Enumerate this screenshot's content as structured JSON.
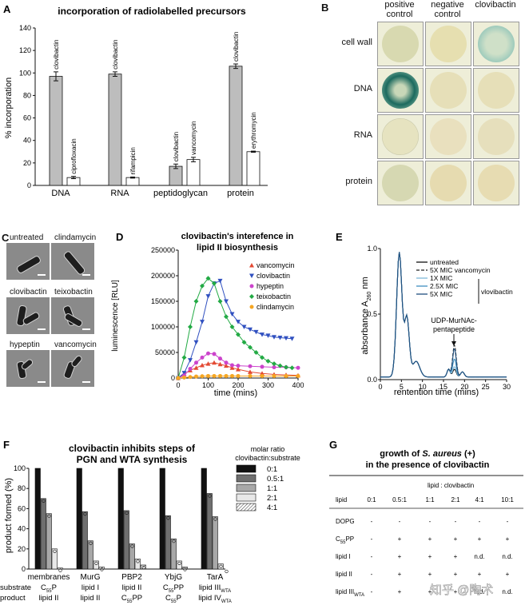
{
  "panels": {
    "A": "A",
    "B": "B",
    "C": "C",
    "D": "D",
    "E": "E",
    "F": "F",
    "G": "G"
  },
  "watermark": "知乎 @陶术",
  "panel_A": {
    "chart_data": {
      "type": "bar",
      "title": "incorporation of radiolabelled precursors",
      "ylabel": "% incorporation",
      "ylim": [
        0,
        140
      ],
      "yticks": [
        0,
        20,
        40,
        60,
        80,
        100,
        120,
        140
      ],
      "groups": [
        "DNA",
        "RNA",
        "peptidoglycan",
        "protein"
      ],
      "bars": [
        {
          "group": "DNA",
          "label": "clovibactin",
          "value": 97,
          "err": 4,
          "fill": "#bdbdbd"
        },
        {
          "group": "DNA",
          "label": "ciprofloxacin",
          "value": 7,
          "err": 1,
          "fill": "#ffffff"
        },
        {
          "group": "RNA",
          "label": "clovibactin",
          "value": 99,
          "err": 2,
          "fill": "#bdbdbd"
        },
        {
          "group": "RNA",
          "label": "rifampicin",
          "value": 7,
          "err": 0.5,
          "fill": "#ffffff"
        },
        {
          "group": "peptidoglycan",
          "label": "clovibactin",
          "value": 17,
          "err": 2,
          "fill": "#bdbdbd"
        },
        {
          "group": "peptidoglycan",
          "label": "vancomycin",
          "value": 23,
          "err": 2,
          "fill": "#ffffff"
        },
        {
          "group": "protein",
          "label": "clovibactin",
          "value": 106,
          "err": 2,
          "fill": "#bdbdbd"
        },
        {
          "group": "protein",
          "label": "erythromycin",
          "value": 30,
          "err": 0.5,
          "fill": "#ffffff"
        }
      ]
    }
  },
  "panel_B": {
    "columns": [
      "positive\ncontrol",
      "negative\ncontrol",
      "clovibactin"
    ],
    "rows": [
      "cell wall",
      "DNA",
      "RNA",
      "protein"
    ]
  },
  "panel_C": {
    "labels": [
      "untreated",
      "clindamycin",
      "clovibactin",
      "teixobactin",
      "hypeptin",
      "vancomycin"
    ]
  },
  "panel_D": {
    "chart_data": {
      "type": "line",
      "title": "clovibactin's interefence in lipid II biosynthesis",
      "xlabel": "time (mins)",
      "ylabel": "luminescence [RLU]",
      "xlim": [
        0,
        400
      ],
      "ylim": [
        0,
        250000
      ],
      "xticks": [
        0,
        100,
        200,
        300,
        400
      ],
      "yticks": [
        0,
        50000,
        100000,
        150000,
        200000,
        250000
      ],
      "series": [
        {
          "name": "vancomycin",
          "color": "#e34a33",
          "marker": "triangle-up",
          "x": [
            0,
            20,
            40,
            60,
            80,
            100,
            120,
            140,
            160,
            180,
            200,
            240,
            280,
            320,
            360,
            400
          ],
          "y": [
            0,
            8000,
            15000,
            20000,
            25000,
            28000,
            30000,
            27000,
            24000,
            20000,
            17000,
            12000,
            9000,
            7000,
            6000,
            5000
          ]
        },
        {
          "name": "clovibactin",
          "color": "#3050c0",
          "marker": "triangle-down",
          "x": [
            0,
            20,
            40,
            60,
            80,
            100,
            120,
            140,
            160,
            180,
            200,
            220,
            240,
            260,
            280,
            300,
            320,
            340,
            360,
            380
          ],
          "y": [
            0,
            10000,
            35000,
            70000,
            110000,
            160000,
            185000,
            190000,
            150000,
            125000,
            110000,
            100000,
            95000,
            90000,
            85000,
            83000,
            80000,
            79000,
            78000,
            77000
          ]
        },
        {
          "name": "hypeptin",
          "color": "#cc44cc",
          "marker": "circle",
          "x": [
            0,
            20,
            40,
            60,
            80,
            100,
            120,
            140,
            160,
            180,
            200,
            240,
            280,
            320,
            360,
            400
          ],
          "y": [
            0,
            5000,
            18000,
            30000,
            40000,
            48000,
            47000,
            38000,
            30000,
            25000,
            24000,
            23000,
            22000,
            21000,
            21000,
            20000
          ]
        },
        {
          "name": "teixobactin",
          "color": "#22aa44",
          "marker": "diamond",
          "x": [
            0,
            20,
            40,
            60,
            80,
            100,
            120,
            140,
            160,
            180,
            200,
            220,
            240,
            260,
            280,
            300,
            320,
            340,
            360,
            380
          ],
          "y": [
            0,
            40000,
            100000,
            150000,
            180000,
            195000,
            185000,
            150000,
            120000,
            100000,
            85000,
            70000,
            60000,
            50000,
            40000,
            33000,
            28000,
            24000,
            21000,
            20000
          ]
        },
        {
          "name": "clindamycin",
          "color": "#f5a623",
          "marker": "circle",
          "x": [
            0,
            20,
            40,
            60,
            80,
            100,
            120,
            140,
            160,
            180,
            200,
            240,
            280,
            320,
            360,
            400
          ],
          "y": [
            0,
            1000,
            2000,
            3000,
            3500,
            4000,
            4000,
            4000,
            4000,
            4000,
            4000,
            4000,
            4000,
            4000,
            4000,
            4000
          ]
        }
      ]
    }
  },
  "panel_E": {
    "chart_data": {
      "type": "line",
      "xlabel": "rentention time (mins)",
      "ylabel": "absorbance A260 nm",
      "xlim": [
        0,
        30
      ],
      "ylim": [
        0,
        1.0
      ],
      "xticks": [
        0,
        5,
        10,
        15,
        20,
        25,
        30
      ],
      "yticks": [
        0,
        0.5,
        1.0
      ],
      "annotation": "UDP-MurNAc-\npentapeptide",
      "vlovibactin_label": "vlovibactin",
      "series": [
        {
          "name": "untreated",
          "color": "#111111",
          "dash": false,
          "peak2": 0.06
        },
        {
          "name": "5X MIC vancomycin",
          "color": "#222222",
          "dash": true,
          "peak2": 0.25
        },
        {
          "name": "1X MIC",
          "color": "#7fb8d9",
          "dash": false,
          "peak2": 0.08
        },
        {
          "name": "2.5X MIC",
          "color": "#3f8fbf",
          "dash": false,
          "peak2": 0.14
        },
        {
          "name": "5X MIC",
          "color": "#1f4f7f",
          "dash": false,
          "peak2": 0.22
        }
      ]
    }
  },
  "panel_F": {
    "chart_data": {
      "type": "bar",
      "title": "clovibactin inhibits steps of\nPGN and WTA synthesis",
      "ylabel": "product formed (%)",
      "ylim": [
        0,
        100
      ],
      "yticks": [
        0,
        20,
        40,
        60,
        80,
        100
      ],
      "legend_title": "molar ratio\nclovibactin:substrate",
      "ratios": [
        "0:1",
        "0.5:1",
        "1:1",
        "2:1",
        "4:1"
      ],
      "categories": [
        "membranes",
        "MurG",
        "PBP2",
        "YbjG",
        "TarA"
      ],
      "values": [
        [
          100,
          70,
          55,
          20,
          1
        ],
        [
          100,
          57,
          28,
          8,
          2
        ],
        [
          100,
          58,
          25,
          10,
          4
        ],
        [
          100,
          53,
          30,
          8,
          2
        ],
        [
          100,
          75,
          52,
          5,
          0
        ]
      ],
      "row_labels": {
        "substrate": "substrate",
        "product": "product"
      },
      "substrates": [
        "C55P",
        "lipid I",
        "lipid II",
        "C55PP",
        "lipid IIIWTA"
      ],
      "products": [
        "lipid II",
        "lipid II",
        "C55PP",
        "C55P",
        "lipid IVWTA"
      ]
    }
  },
  "panel_G": {
    "title_line1": "growth of S. aureus (+)",
    "title_line2": "in the presence of clovibactin",
    "subheader": "lipid : clovibactin",
    "header": [
      "lipid",
      "0:1",
      "0.5:1",
      "1:1",
      "2:1",
      "4:1",
      "10:1"
    ],
    "rows": [
      [
        "DOPG",
        "-",
        "-",
        "-",
        "-",
        "-",
        "-"
      ],
      [
        "C55PP",
        "-",
        "+",
        "+",
        "+",
        "+",
        "+"
      ],
      [
        "lipid I",
        "-",
        "+",
        "+",
        "+",
        "n.d.",
        "n.d."
      ],
      [
        "lipid II",
        "-",
        "+",
        "+",
        "+",
        "+",
        "+"
      ],
      [
        "lipid IIIWTA",
        "-",
        "+",
        "+",
        "+",
        "n.d.",
        "n.d."
      ]
    ]
  }
}
